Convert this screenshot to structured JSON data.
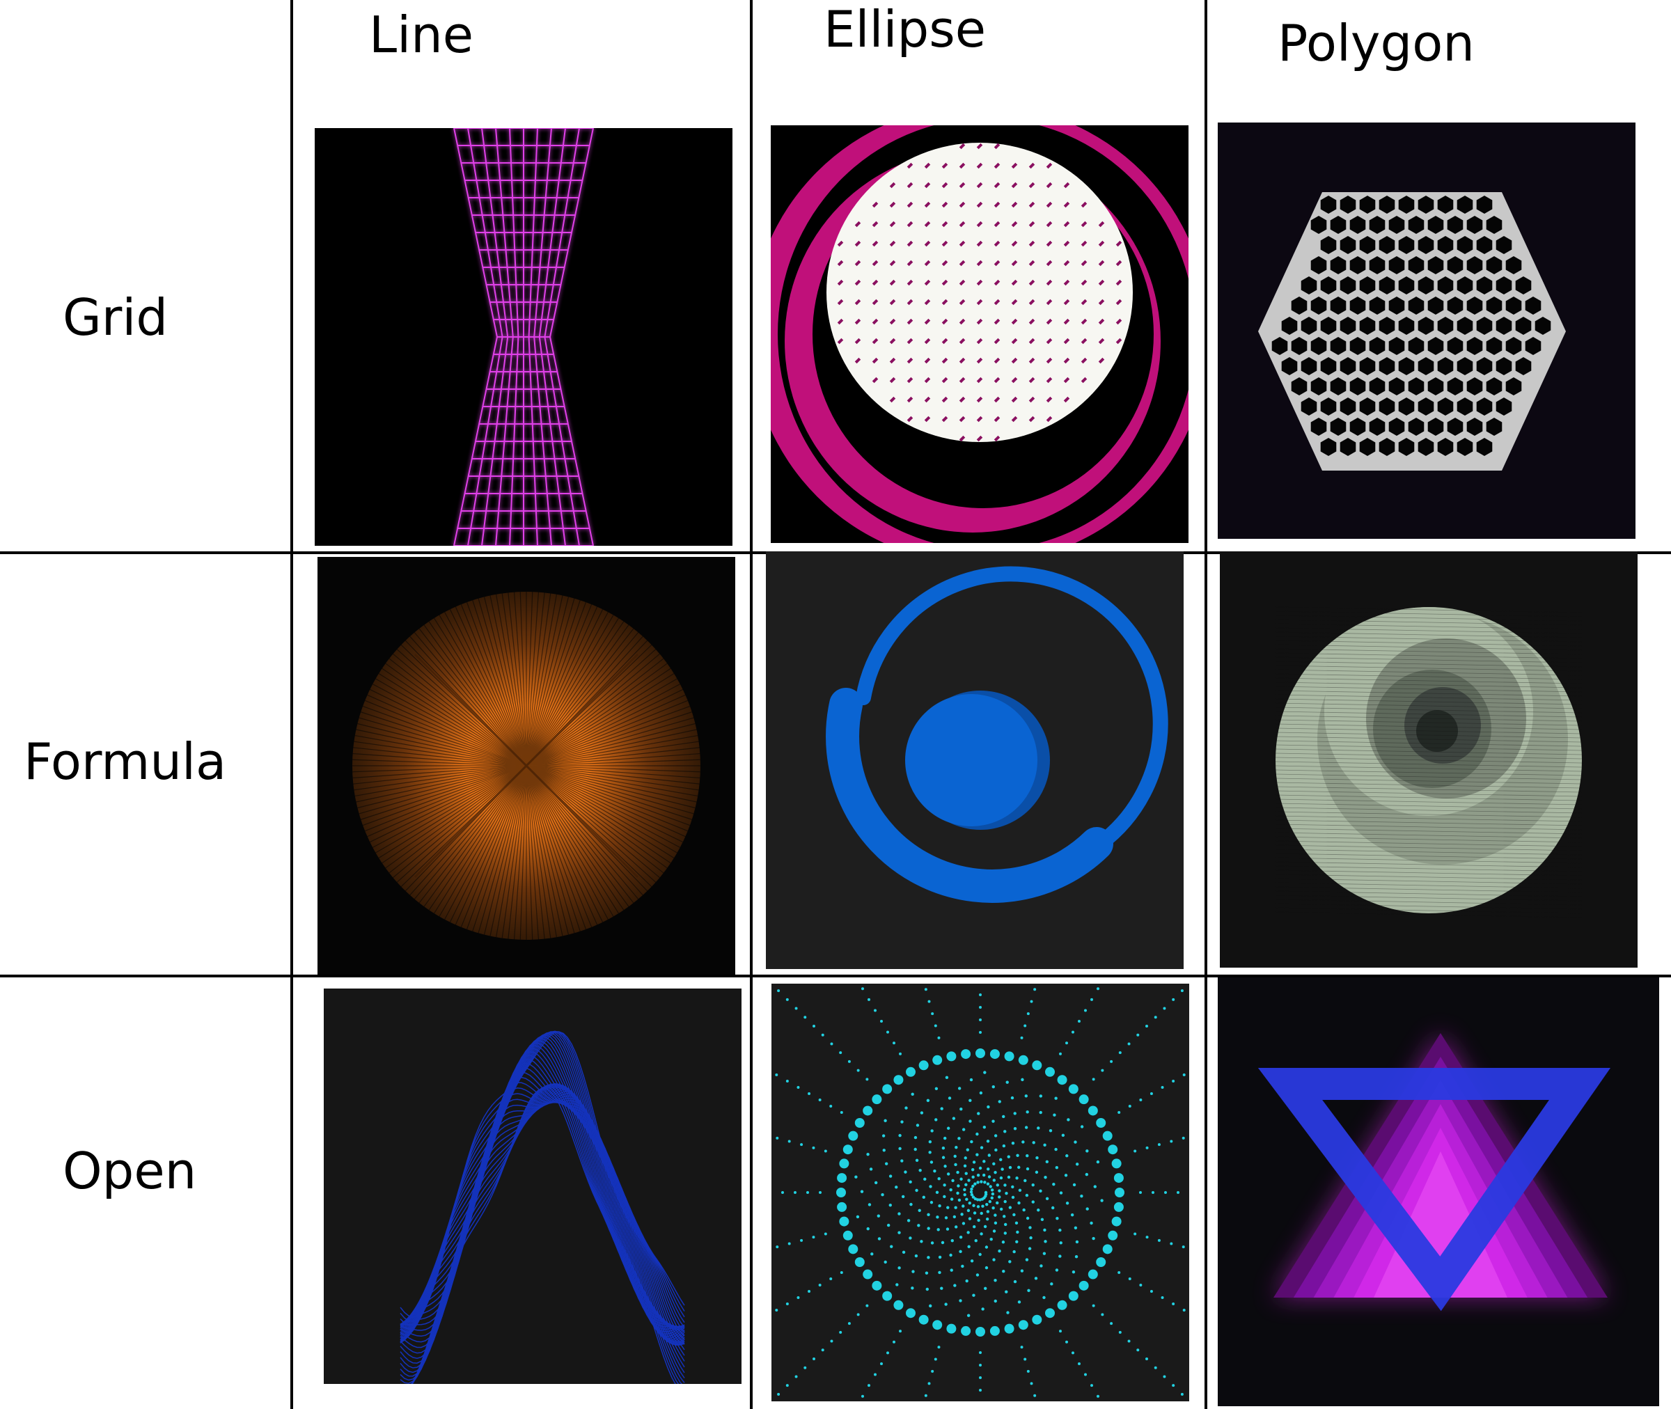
{
  "columns": [
    {
      "label": "Line"
    },
    {
      "label": "Ellipse"
    },
    {
      "label": "Polygon"
    }
  ],
  "rows": [
    {
      "label": "Grid"
    },
    {
      "label": "Formula"
    },
    {
      "label": "Open"
    }
  ],
  "cells": [
    {
      "row": "Grid",
      "column": "Line",
      "background": "#000000",
      "accent": "#e040e8"
    },
    {
      "row": "Grid",
      "column": "Ellipse",
      "background": "#000000",
      "accent": "#c0107a"
    },
    {
      "row": "Grid",
      "column": "Polygon",
      "background": "#0c0812",
      "accent": "#c8c8c8"
    },
    {
      "row": "Formula",
      "column": "Line",
      "background": "#050505",
      "accent": "#f07818"
    },
    {
      "row": "Formula",
      "column": "Ellipse",
      "background": "#1e1e1e",
      "accent": "#0a64d2"
    },
    {
      "row": "Formula",
      "column": "Polygon",
      "background": "#111111",
      "accent": "#a9b8a2"
    },
    {
      "row": "Open",
      "column": "Line",
      "background": "#161616",
      "accent": "#1438d8"
    },
    {
      "row": "Open",
      "column": "Ellipse",
      "background": "#1a1a1a",
      "accent": "#22d2e2"
    },
    {
      "row": "Open",
      "column": "Polygon",
      "background": "#0a0a0e",
      "accent": "#d020d8"
    }
  ]
}
